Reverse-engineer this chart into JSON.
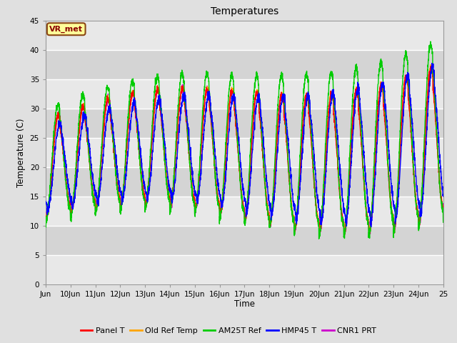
{
  "title": "Temperatures",
  "xlabel": "Time",
  "ylabel": "Temperature (C)",
  "annotation": "VR_met",
  "ylim": [
    0,
    45
  ],
  "xlim": [
    9,
    25
  ],
  "yticks": [
    0,
    5,
    10,
    15,
    20,
    25,
    30,
    35,
    40,
    45
  ],
  "xtick_labels": [
    "Jun",
    "10Jun",
    "11Jun",
    "12Jun",
    "13Jun",
    "14Jun",
    "15Jun",
    "16Jun",
    "17Jun",
    "18Jun",
    "19Jun",
    "20Jun",
    "21Jun",
    "22Jun",
    "23Jun",
    "24Jun",
    "25"
  ],
  "xtick_positions": [
    9,
    10,
    11,
    12,
    13,
    14,
    15,
    16,
    17,
    18,
    19,
    20,
    21,
    22,
    23,
    24,
    25
  ],
  "series": [
    {
      "name": "Panel T",
      "color": "#ff0000"
    },
    {
      "name": "Old Ref Temp",
      "color": "#ffa500"
    },
    {
      "name": "AM25T Ref",
      "color": "#00cc00"
    },
    {
      "name": "HMP45 T",
      "color": "#0000ff"
    },
    {
      "name": "CNR1 PRT",
      "color": "#cc00cc"
    }
  ],
  "bg_color": "#e0e0e0",
  "plot_bg_color": "#f0f0f0",
  "grid_color": "#ffffff",
  "band_light": "#e8e8e8",
  "band_dark": "#d4d4d4"
}
